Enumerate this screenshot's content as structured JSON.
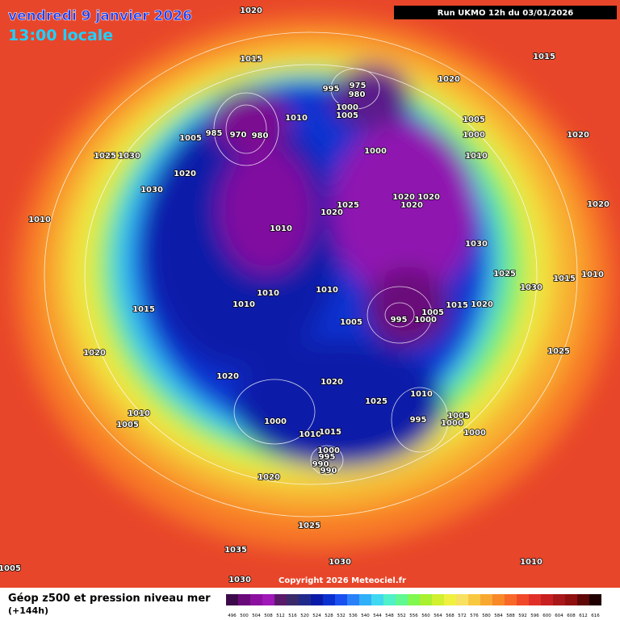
{
  "header": {
    "date": "vendredi 9 janvier 2026",
    "time": "13:00 locale",
    "run": "Run UKMO 12h du 03/01/2026"
  },
  "isobar_labels": [
    1020,
    1015,
    1015,
    1020,
    995,
    975,
    980,
    1000,
    1005,
    1010,
    1005,
    1000,
    970,
    980,
    985,
    1005,
    1025,
    1030,
    1020,
    1030,
    1010,
    1020,
    1000,
    1010,
    1020,
    1020,
    1020,
    1025,
    1020,
    1010,
    1030,
    1020,
    1025,
    1030,
    1015,
    1010,
    1010,
    1010,
    1010,
    995,
    1000,
    1005,
    1015,
    1020,
    1005,
    1015,
    1020,
    1025,
    1020,
    1020,
    1025,
    1010,
    1010,
    1005,
    995,
    1005,
    1000,
    1000,
    1010,
    1015,
    1000,
    995,
    990,
    990,
    1000,
    1020,
    1025,
    1035,
    1030,
    1010,
    1030,
    1005
  ],
  "copyright": "Copyright 2026 Meteociel.fr",
  "legend": {
    "title": "Géop z500 et pression niveau mer",
    "subtitle": "(+144h)",
    "levels": [
      496,
      500,
      504,
      508,
      512,
      516,
      520,
      524,
      528,
      532,
      536,
      540,
      544,
      548,
      552,
      556,
      560,
      564,
      568,
      572,
      576,
      580,
      584,
      588,
      592,
      596,
      600,
      604,
      608,
      612,
      616
    ]
  }
}
